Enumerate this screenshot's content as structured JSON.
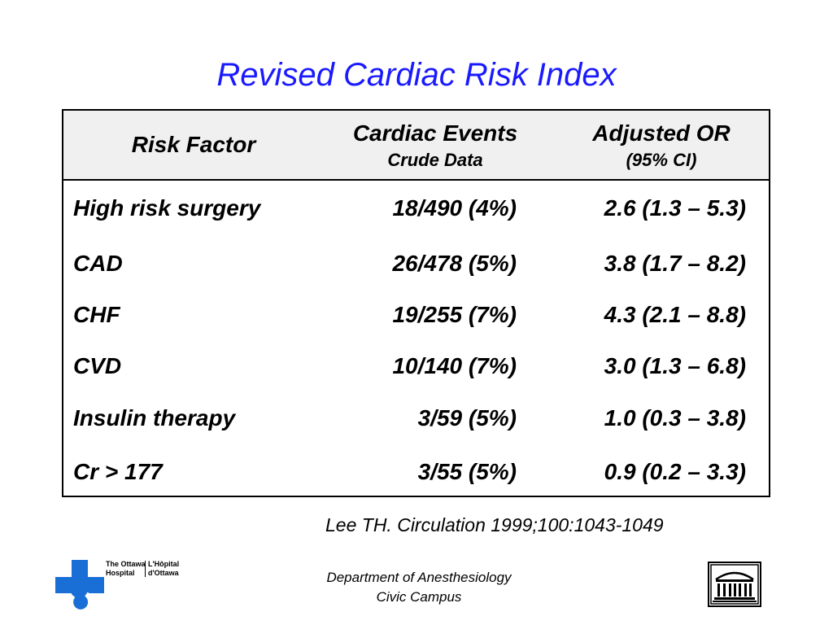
{
  "title": "Revised Cardiac Risk Index",
  "table": {
    "headers": {
      "risk_factor": "Risk Factor",
      "cardiac_events": "Cardiac Events",
      "cardiac_events_sub": "Crude Data",
      "adjusted_or": "Adjusted OR",
      "adjusted_or_sub": "(95% CI)"
    },
    "rows": [
      {
        "factor": "High risk surgery",
        "events": "18/490 (4%)",
        "or": "2.6 (1.3 – 5.3)"
      },
      {
        "factor": "CAD",
        "events": "26/478 (5%)",
        "or": "3.8 (1.7 – 8.2)"
      },
      {
        "factor": "CHF",
        "events": "19/255 (7%)",
        "or": "4.3 (2.1 – 8.8)"
      },
      {
        "factor": "CVD",
        "events": "10/140 (7%)",
        "or": "3.0 (1.3 – 6.8)"
      },
      {
        "factor": "Insulin therapy",
        "events": "3/59 (5%)",
        "or": "1.0 (0.3 – 3.8)"
      },
      {
        "factor": "Cr > 177",
        "events": "3/55 (5%)",
        "or": "0.9 (0.2 – 3.3)"
      }
    ]
  },
  "citation": "Lee TH. Circulation 1999;100:1043-1049",
  "footer": {
    "department": "Department of Anesthesiology",
    "campus": "Civic Campus"
  },
  "logo": {
    "name_en_1": "The Ottawa",
    "name_en_2": "Hospital",
    "name_fr_1": "L'Hôpital",
    "name_fr_2": "d'Ottawa",
    "accent_color": "#1a6fd6"
  },
  "colors": {
    "title": "#1a1aff",
    "header_bg": "#f0f0f0"
  }
}
